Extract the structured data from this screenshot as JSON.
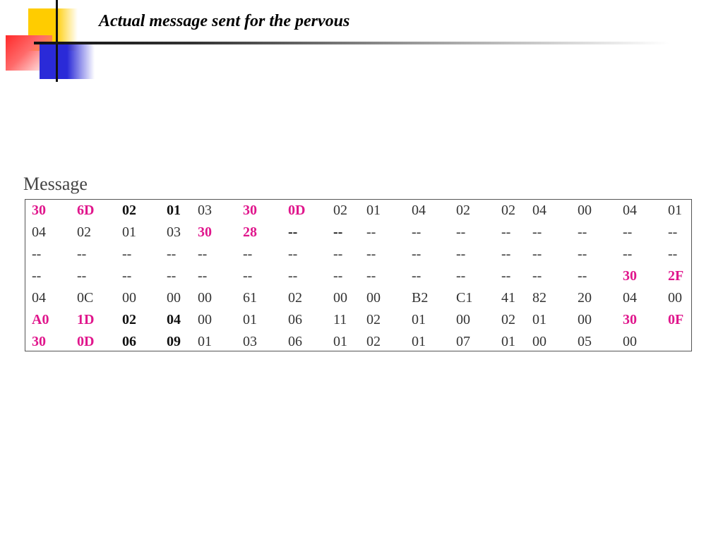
{
  "header": {
    "title": "Actual message sent for the pervous"
  },
  "caption": "Message",
  "colors": {
    "highlight": "#e0168c",
    "text": "#333333"
  },
  "rows": [
    [
      [
        "30",
        "pink"
      ],
      [
        "6D",
        "pink"
      ],
      [
        "02",
        "bold"
      ],
      [
        "01",
        "bold"
      ],
      [
        "03",
        ""
      ],
      [
        "30",
        "pink"
      ],
      [
        "0D",
        "pink"
      ],
      [
        "02",
        ""
      ],
      [
        "01",
        ""
      ],
      [
        "04",
        ""
      ],
      [
        "02",
        ""
      ],
      [
        "02",
        ""
      ],
      [
        "04",
        ""
      ],
      [
        "00",
        ""
      ],
      [
        "04",
        ""
      ],
      [
        "01",
        ""
      ]
    ],
    [
      [
        "04",
        ""
      ],
      [
        "02",
        ""
      ],
      [
        "01",
        ""
      ],
      [
        "03",
        ""
      ],
      [
        "30",
        "pink"
      ],
      [
        "28",
        "pink"
      ],
      [
        "--",
        "bold"
      ],
      [
        "--",
        "bold"
      ],
      [
        "--",
        ""
      ],
      [
        "--",
        ""
      ],
      [
        "--",
        ""
      ],
      [
        "--",
        ""
      ],
      [
        "--",
        ""
      ],
      [
        "--",
        ""
      ],
      [
        "--",
        ""
      ],
      [
        "--",
        ""
      ]
    ],
    [
      [
        "--",
        ""
      ],
      [
        "--",
        ""
      ],
      [
        "--",
        ""
      ],
      [
        "--",
        ""
      ],
      [
        "--",
        ""
      ],
      [
        "--",
        ""
      ],
      [
        "--",
        ""
      ],
      [
        "--",
        ""
      ],
      [
        "--",
        ""
      ],
      [
        "--",
        ""
      ],
      [
        "--",
        ""
      ],
      [
        "--",
        ""
      ],
      [
        "--",
        ""
      ],
      [
        "--",
        ""
      ],
      [
        "--",
        ""
      ],
      [
        "--",
        ""
      ]
    ],
    [
      [
        "--",
        ""
      ],
      [
        "--",
        ""
      ],
      [
        "--",
        ""
      ],
      [
        "--",
        ""
      ],
      [
        "--",
        ""
      ],
      [
        "--",
        ""
      ],
      [
        "--",
        ""
      ],
      [
        "--",
        ""
      ],
      [
        "--",
        ""
      ],
      [
        "--",
        ""
      ],
      [
        "--",
        ""
      ],
      [
        "--",
        ""
      ],
      [
        "--",
        ""
      ],
      [
        "--",
        ""
      ],
      [
        "30",
        "pink"
      ],
      [
        "2F",
        "pink"
      ]
    ],
    [
      [
        "04",
        ""
      ],
      [
        "0C",
        ""
      ],
      [
        "00",
        ""
      ],
      [
        "00",
        ""
      ],
      [
        "00",
        ""
      ],
      [
        "61",
        ""
      ],
      [
        "02",
        ""
      ],
      [
        "00",
        ""
      ],
      [
        "00",
        ""
      ],
      [
        "B2",
        ""
      ],
      [
        "C1",
        ""
      ],
      [
        "41",
        ""
      ],
      [
        "82",
        ""
      ],
      [
        "20",
        ""
      ],
      [
        "04",
        ""
      ],
      [
        "00",
        ""
      ]
    ],
    [
      [
        "A0",
        "pink"
      ],
      [
        "1D",
        "pink"
      ],
      [
        "02",
        "bold"
      ],
      [
        "04",
        "bold"
      ],
      [
        "00",
        ""
      ],
      [
        "01",
        ""
      ],
      [
        "06",
        ""
      ],
      [
        "11",
        ""
      ],
      [
        "02",
        ""
      ],
      [
        "01",
        ""
      ],
      [
        "00",
        ""
      ],
      [
        "02",
        ""
      ],
      [
        "01",
        ""
      ],
      [
        "00",
        ""
      ],
      [
        "30",
        "pink"
      ],
      [
        "0F",
        "pink"
      ]
    ],
    [
      [
        "30",
        "pink"
      ],
      [
        "0D",
        "pink"
      ],
      [
        "06",
        "bold"
      ],
      [
        "09",
        "bold"
      ],
      [
        "01",
        ""
      ],
      [
        "03",
        ""
      ],
      [
        "06",
        ""
      ],
      [
        "01",
        ""
      ],
      [
        "02",
        ""
      ],
      [
        "01",
        ""
      ],
      [
        "07",
        ""
      ],
      [
        "01",
        ""
      ],
      [
        "00",
        ""
      ],
      [
        "05",
        ""
      ],
      [
        "00",
        ""
      ]
    ]
  ]
}
